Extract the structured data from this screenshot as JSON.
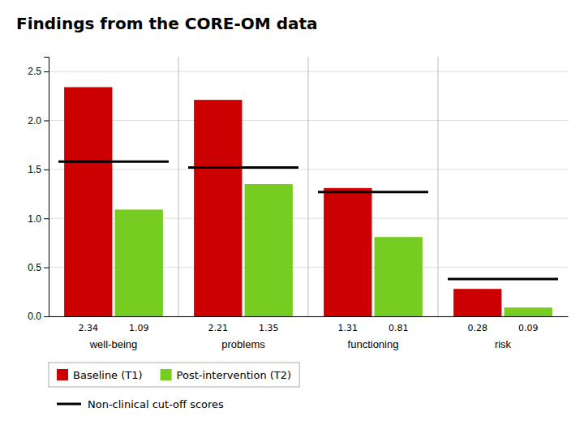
{
  "chart_data": {
    "type": "bar",
    "title": "Findings from the CORE-OM data",
    "categories": [
      "well-being",
      "problems",
      "functioning",
      "risk"
    ],
    "series": [
      {
        "name": "Baseline (T1)",
        "color": "#cc0000",
        "values": [
          2.34,
          2.21,
          1.31,
          0.28
        ],
        "data_labels": true
      },
      {
        "name": "Post-intervention (T2)",
        "color": "#77cc22",
        "values": [
          1.09,
          1.35,
          0.81,
          0.09
        ],
        "data_labels": true
      },
      {
        "name": "Non-clinical cut-off scores",
        "type": "line",
        "color": "#000000",
        "values": [
          1.58,
          1.52,
          1.27,
          0.38
        ]
      }
    ],
    "ylim": [
      0,
      2.65
    ],
    "yticks": [
      {
        "value": 0,
        "label": "0.0"
      },
      0.5,
      {
        "value": 1.0,
        "label": "1.0"
      },
      1.5,
      {
        "value": 2.0,
        "label": "2.0"
      },
      2.5
    ],
    "grid": true,
    "legend": "bottom"
  }
}
